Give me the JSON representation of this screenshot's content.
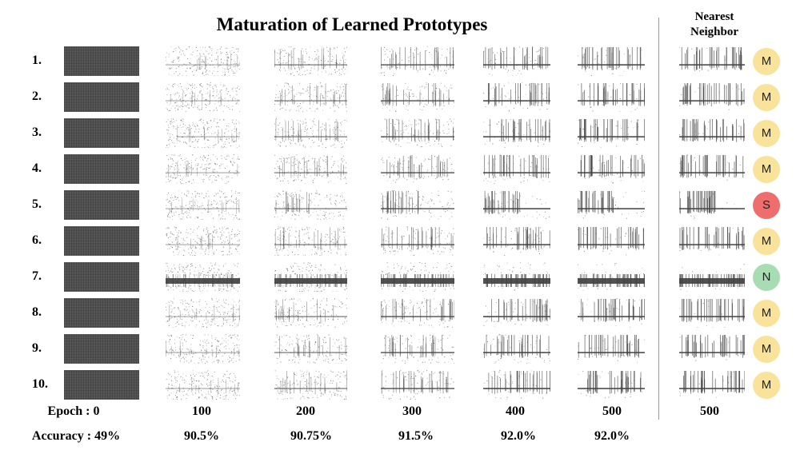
{
  "title": "Maturation of Learned Prototypes",
  "nearest_neighbor_header": "Nearest Neighbor",
  "rows": [
    {
      "label": "1.",
      "class": "M"
    },
    {
      "label": "2.",
      "class": "M"
    },
    {
      "label": "3.",
      "class": "M"
    },
    {
      "label": "4.",
      "class": "M"
    },
    {
      "label": "5.",
      "class": "S"
    },
    {
      "label": "6.",
      "class": "M"
    },
    {
      "label": "7.",
      "class": "N"
    },
    {
      "label": "8.",
      "class": "M"
    },
    {
      "label": "9.",
      "class": "M"
    },
    {
      "label": "10.",
      "class": "M"
    }
  ],
  "epochs": [
    "Epoch : 0",
    "100",
    "200",
    "300",
    "400",
    "500"
  ],
  "nearest_neighbor_epoch": "500",
  "accuracies": [
    "Accuracy : 49%",
    "90.5%",
    "90.75%",
    "91.5%",
    "92.0%",
    "92.0%"
  ],
  "class_colors": {
    "M": "#f9e39a",
    "S": "#ee6e6e",
    "N": "#a8dcb3"
  }
}
